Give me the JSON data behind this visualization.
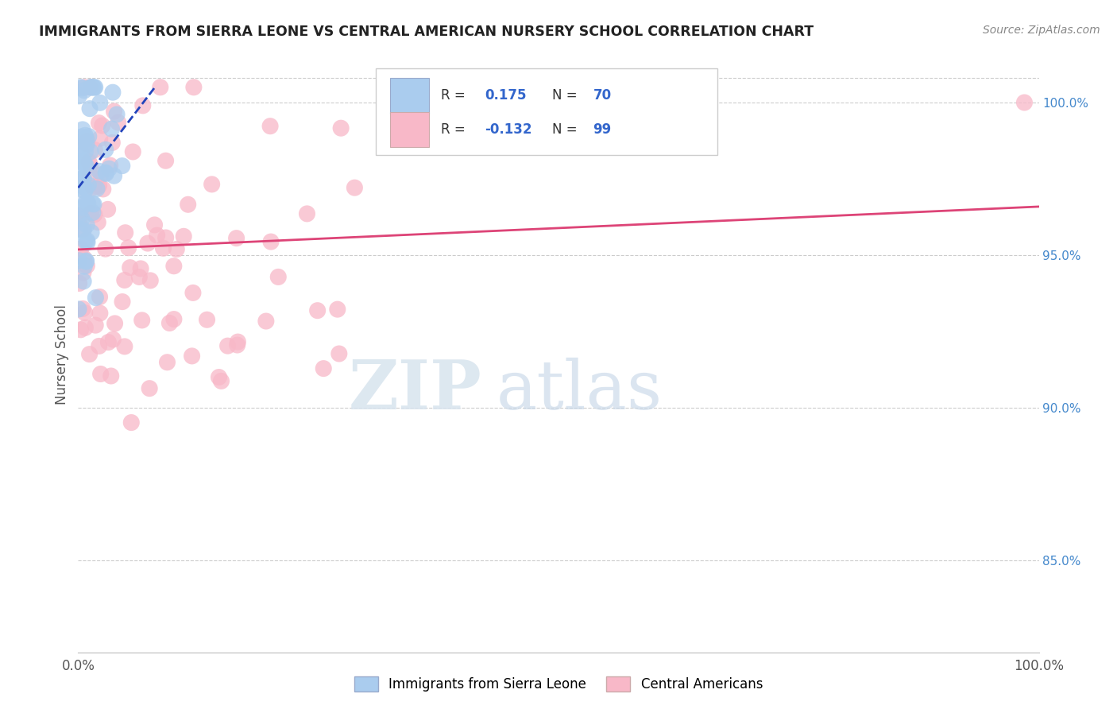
{
  "title": "IMMIGRANTS FROM SIERRA LEONE VS CENTRAL AMERICAN NURSERY SCHOOL CORRELATION CHART",
  "source_text": "Source: ZipAtlas.com",
  "ylabel": "Nursery School",
  "xmin": 0.0,
  "xmax": 100.0,
  "ymin": 82.0,
  "ymax": 101.5,
  "right_yticks": [
    85.0,
    90.0,
    95.0,
    100.0
  ],
  "right_ytick_labels": [
    "85.0%",
    "90.0%",
    "95.0%",
    "100.0%"
  ],
  "blue_color": "#aaccee",
  "pink_color": "#f8b8c8",
  "blue_line_color": "#2244bb",
  "pink_line_color": "#dd4477",
  "blue_r": 0.175,
  "blue_n": 70,
  "pink_r": -0.132,
  "pink_n": 99,
  "watermark_zip": "ZIP",
  "watermark_atlas": "atlas",
  "series1_label": "Immigrants from Sierra Leone",
  "series2_label": "Central Americans"
}
